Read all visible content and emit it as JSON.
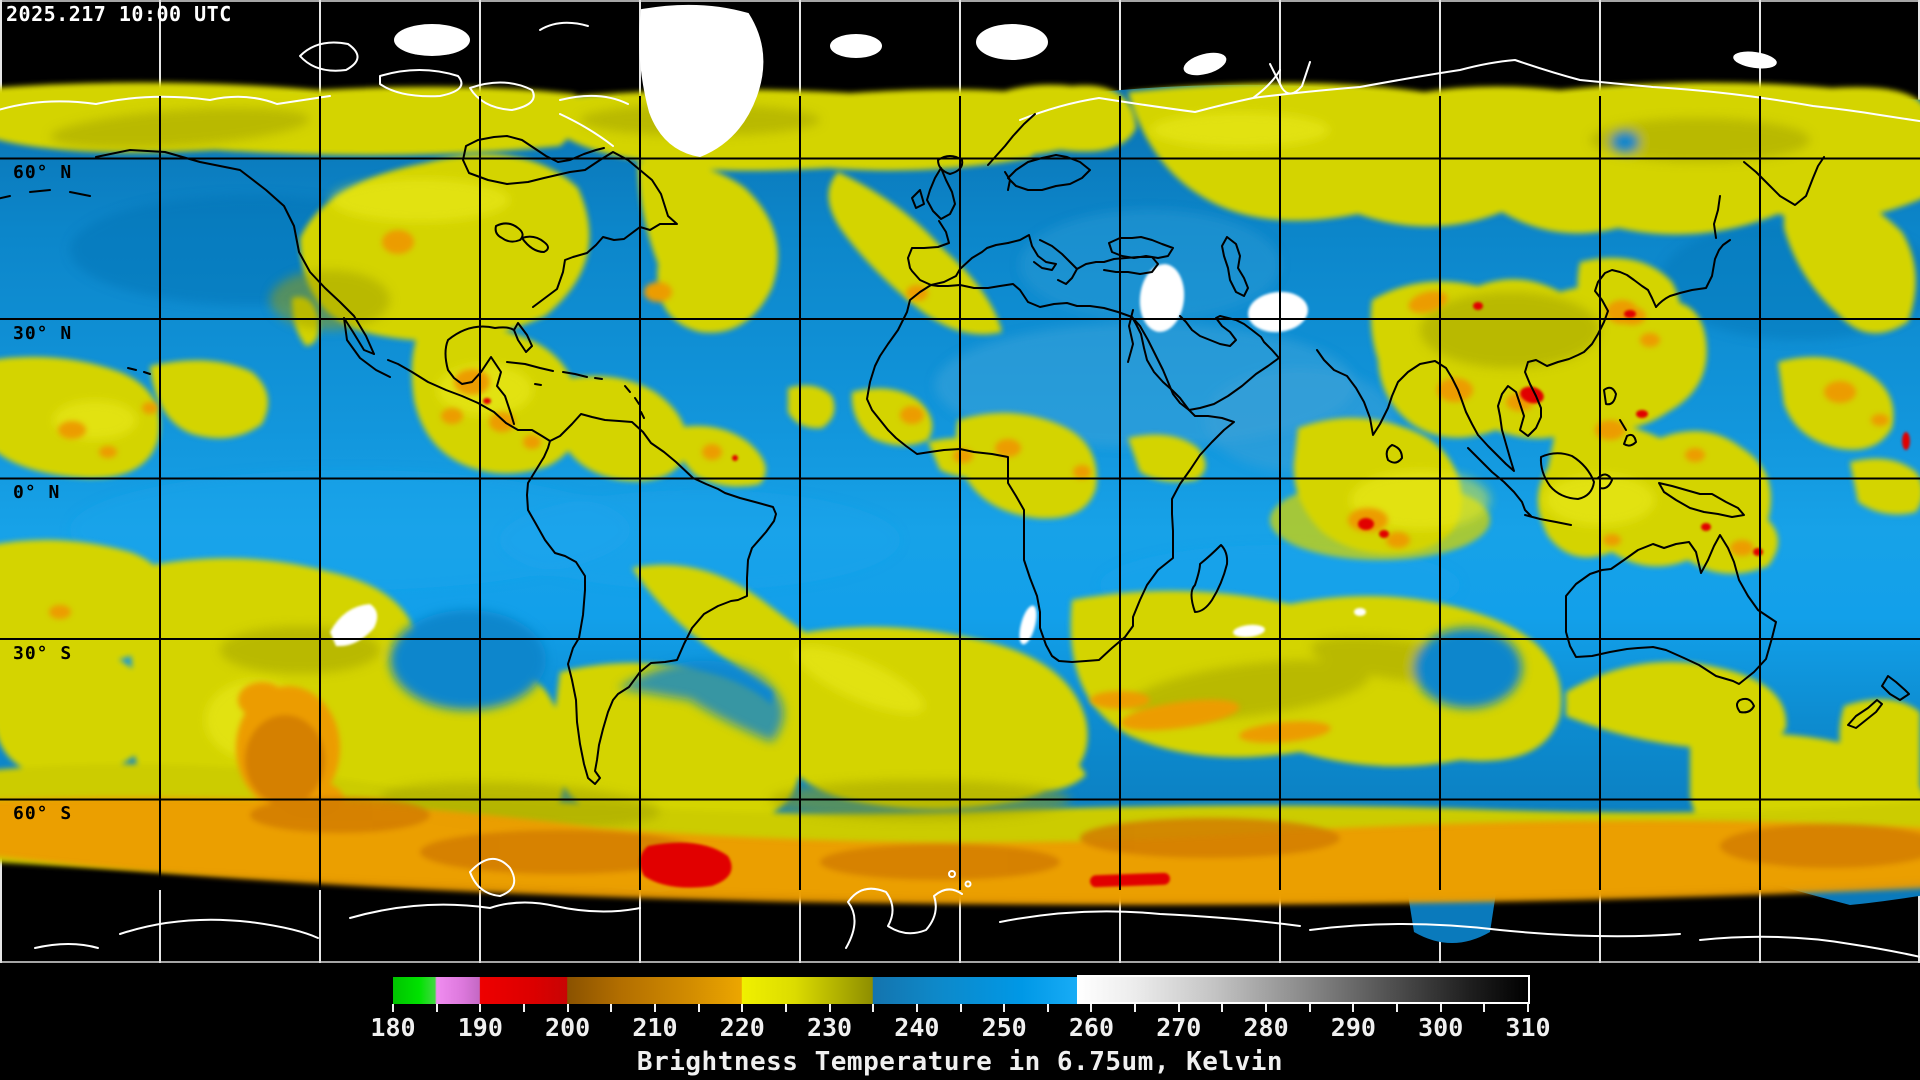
{
  "header": {
    "timestamp": "2025.217 10:00 UTC"
  },
  "map": {
    "projection": "equirectangular global composite",
    "latitude_labels": [
      {
        "text": "60° N"
      },
      {
        "text": "30° N"
      },
      {
        "text": "0° N"
      },
      {
        "text": "30° S"
      },
      {
        "text": "60° S"
      }
    ],
    "grid_color_over_data": "#000000",
    "grid_color_over_space": "#e8e8e8"
  },
  "colorbar": {
    "caption": "Brightness Temperature in 6.75um, Kelvin",
    "min_k": 180,
    "max_k": 310,
    "tick_step_k": 5,
    "label_step_k": 10,
    "tick_labels": [
      "180",
      "190",
      "200",
      "210",
      "220",
      "230",
      "240",
      "250",
      "260",
      "270",
      "280",
      "290",
      "300",
      "310"
    ],
    "outlined_segment": {
      "from_k": 258.5,
      "to_k": 310,
      "outline_color": "#ffffff"
    },
    "gradient_stops": [
      {
        "k": 180,
        "color": "#00c400"
      },
      {
        "k": 183,
        "color": "#00e200"
      },
      {
        "k": 184.8,
        "color": "#40d840"
      },
      {
        "k": 185,
        "color": "#f08cf0"
      },
      {
        "k": 188,
        "color": "#dc78dc"
      },
      {
        "k": 189.9,
        "color": "#c468c4"
      },
      {
        "k": 190,
        "color": "#ee0000"
      },
      {
        "k": 196,
        "color": "#dc0000"
      },
      {
        "k": 199.9,
        "color": "#c80404"
      },
      {
        "k": 200,
        "color": "#8a5200"
      },
      {
        "k": 206,
        "color": "#b26e00"
      },
      {
        "k": 214,
        "color": "#d28c00"
      },
      {
        "k": 219.9,
        "color": "#eca600"
      },
      {
        "k": 220,
        "color": "#f0f000"
      },
      {
        "k": 226,
        "color": "#dcdc00"
      },
      {
        "k": 234.9,
        "color": "#8e8e00"
      },
      {
        "k": 235,
        "color": "#1474ae"
      },
      {
        "k": 242,
        "color": "#0e88c8"
      },
      {
        "k": 252,
        "color": "#0098e6"
      },
      {
        "k": 258.4,
        "color": "#18acf6"
      },
      {
        "k": 258.5,
        "color": "#ffffff"
      },
      {
        "k": 265,
        "color": "#ececec"
      },
      {
        "k": 274,
        "color": "#c4c4c4"
      },
      {
        "k": 284,
        "color": "#8c8c8c"
      },
      {
        "k": 294,
        "color": "#525252"
      },
      {
        "k": 303,
        "color": "#202020"
      },
      {
        "k": 310,
        "color": "#000000"
      }
    ]
  },
  "chart_data": {
    "type": "heatmap",
    "title": "Global 6.75um water-vapor brightness temperature composite",
    "timestamp": "2025.217 10:00 UTC",
    "colorbar_range_kelvin": [
      180,
      310
    ],
    "colorbar_tick_labels": [
      180,
      190,
      200,
      210,
      220,
      230,
      240,
      250,
      260,
      270,
      280,
      290,
      300,
      310
    ],
    "legend_caption": "Brightness Temperature in 6.75um, Kelvin",
    "latitude_gridlines_deg": [
      60,
      30,
      0,
      -30,
      -60
    ],
    "longitude_gridline_spacing_deg": 30
  }
}
